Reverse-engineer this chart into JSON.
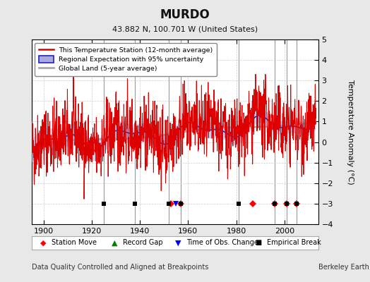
{
  "title": "MURDO",
  "subtitle": "43.882 N, 100.701 W (United States)",
  "ylabel": "Temperature Anomaly (°C)",
  "xlabel_footer": "Data Quality Controlled and Aligned at Breakpoints",
  "footer_right": "Berkeley Earth",
  "ylim": [
    -4,
    5
  ],
  "xlim": [
    1895,
    2014
  ],
  "xticks": [
    1900,
    1920,
    1940,
    1960,
    1980,
    2000
  ],
  "yticks": [
    -4,
    -3,
    -2,
    -1,
    0,
    1,
    2,
    3,
    4,
    5
  ],
  "background_color": "#e8e8e8",
  "plot_bg_color": "#ffffff",
  "grid_color": "#cccccc",
  "station_move_years": [
    1953,
    1957,
    1987,
    1996,
    2001,
    2005
  ],
  "record_gap_years": [],
  "obs_change_years": [
    1955
  ],
  "empirical_break_years": [
    1925,
    1938,
    1952,
    1957,
    1981,
    1996,
    2001,
    2005
  ],
  "breakpoint_line_years": [
    1925,
    1938,
    1952,
    1957,
    1981,
    1996,
    2001,
    2005
  ],
  "marker_y": -3.0,
  "station_color": "#dd0000",
  "regional_line_color": "#2222cc",
  "regional_band_color": "#aaaadd",
  "global_land_color": "#aaaaaa",
  "seed": 42
}
